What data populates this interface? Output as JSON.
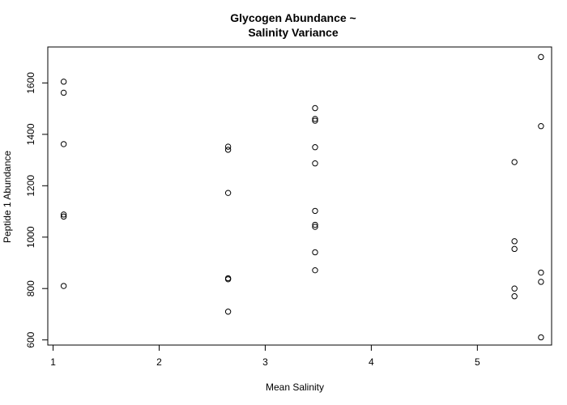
{
  "chart_data": {
    "type": "scatter",
    "title_lines": [
      "Glycogen Abundance ~",
      "Salinity Variance"
    ],
    "xlabel": "Mean Salinity",
    "ylabel": "Peptide 1 Abundance",
    "xlim": [
      0.95,
      5.7
    ],
    "ylim": [
      580,
      1740
    ],
    "x_ticks": [
      1,
      2,
      3,
      4,
      5
    ],
    "x_tick_labels": [
      "1",
      "2",
      "3",
      "4",
      "5"
    ],
    "y_ticks": [
      600,
      800,
      1000,
      1200,
      1400,
      1600
    ],
    "y_tick_labels": [
      "600",
      "800",
      "1000",
      "1200",
      "1400",
      "1600"
    ],
    "grid": false,
    "points": [
      {
        "x": 1.1,
        "y": 1605
      },
      {
        "x": 1.1,
        "y": 1562
      },
      {
        "x": 1.1,
        "y": 1362
      },
      {
        "x": 1.1,
        "y": 1088
      },
      {
        "x": 1.1,
        "y": 1080
      },
      {
        "x": 1.1,
        "y": 810
      },
      {
        "x": 2.65,
        "y": 1352
      },
      {
        "x": 2.65,
        "y": 1340
      },
      {
        "x": 2.65,
        "y": 1172
      },
      {
        "x": 2.65,
        "y": 840
      },
      {
        "x": 2.65,
        "y": 836
      },
      {
        "x": 2.65,
        "y": 710
      },
      {
        "x": 3.47,
        "y": 1502
      },
      {
        "x": 3.47,
        "y": 1460
      },
      {
        "x": 3.47,
        "y": 1453
      },
      {
        "x": 3.47,
        "y": 1350
      },
      {
        "x": 3.47,
        "y": 1287
      },
      {
        "x": 3.47,
        "y": 1102
      },
      {
        "x": 3.47,
        "y": 1048
      },
      {
        "x": 3.47,
        "y": 1040
      },
      {
        "x": 3.47,
        "y": 941
      },
      {
        "x": 3.47,
        "y": 871
      },
      {
        "x": 5.35,
        "y": 1292
      },
      {
        "x": 5.35,
        "y": 984
      },
      {
        "x": 5.35,
        "y": 954
      },
      {
        "x": 5.35,
        "y": 800
      },
      {
        "x": 5.35,
        "y": 770
      },
      {
        "x": 5.6,
        "y": 1701
      },
      {
        "x": 5.6,
        "y": 1432
      },
      {
        "x": 5.6,
        "y": 862
      },
      {
        "x": 5.6,
        "y": 826
      },
      {
        "x": 5.6,
        "y": 610
      }
    ]
  }
}
